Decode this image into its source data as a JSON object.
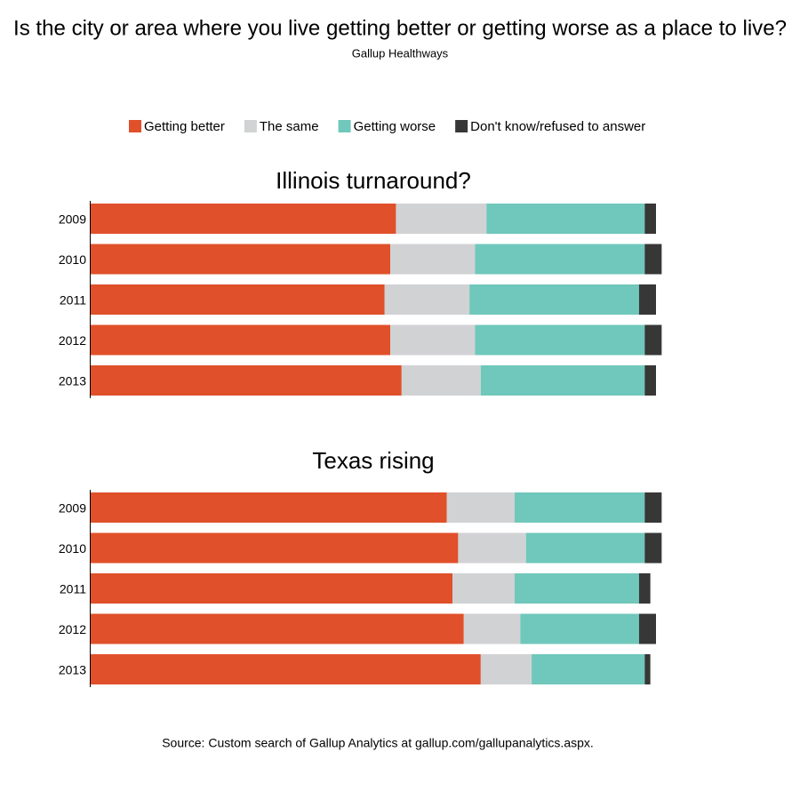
{
  "chart_data": {
    "type": "stacked-barh",
    "title": "Is the city or area where you live getting better or getting worse as a place to live?",
    "subtitle": "Gallup Healthways",
    "source": "Source: Custom search of Gallup Analytics at gallup.com/gallupanalytics.aspx.",
    "series": [
      {
        "name": "Getting better",
        "color": "#e0502a"
      },
      {
        "name": "The same",
        "color": "#d1d2d4"
      },
      {
        "name": "Getting worse",
        "color": "#6fc8bb"
      },
      {
        "name": "Don't know/refused to answer",
        "color": "#373737"
      }
    ],
    "panels": [
      {
        "title": "Illinois turnaround?",
        "categories": [
          "2009",
          "2010",
          "2011",
          "2012",
          "2013"
        ],
        "series_values": [
          [
            54,
            53,
            52,
            53,
            55
          ],
          [
            16,
            15,
            15,
            15,
            14
          ],
          [
            28,
            30,
            30,
            30,
            29
          ],
          [
            2,
            3,
            3,
            3,
            2
          ]
        ]
      },
      {
        "title": "Texas rising",
        "categories": [
          "2009",
          "2010",
          "2011",
          "2012",
          "2013"
        ],
        "series_values": [
          [
            63,
            65,
            64,
            66,
            69
          ],
          [
            12,
            12,
            11,
            10,
            9
          ],
          [
            23,
            21,
            22,
            21,
            20
          ],
          [
            3,
            3,
            2,
            3,
            1
          ]
        ]
      }
    ]
  }
}
